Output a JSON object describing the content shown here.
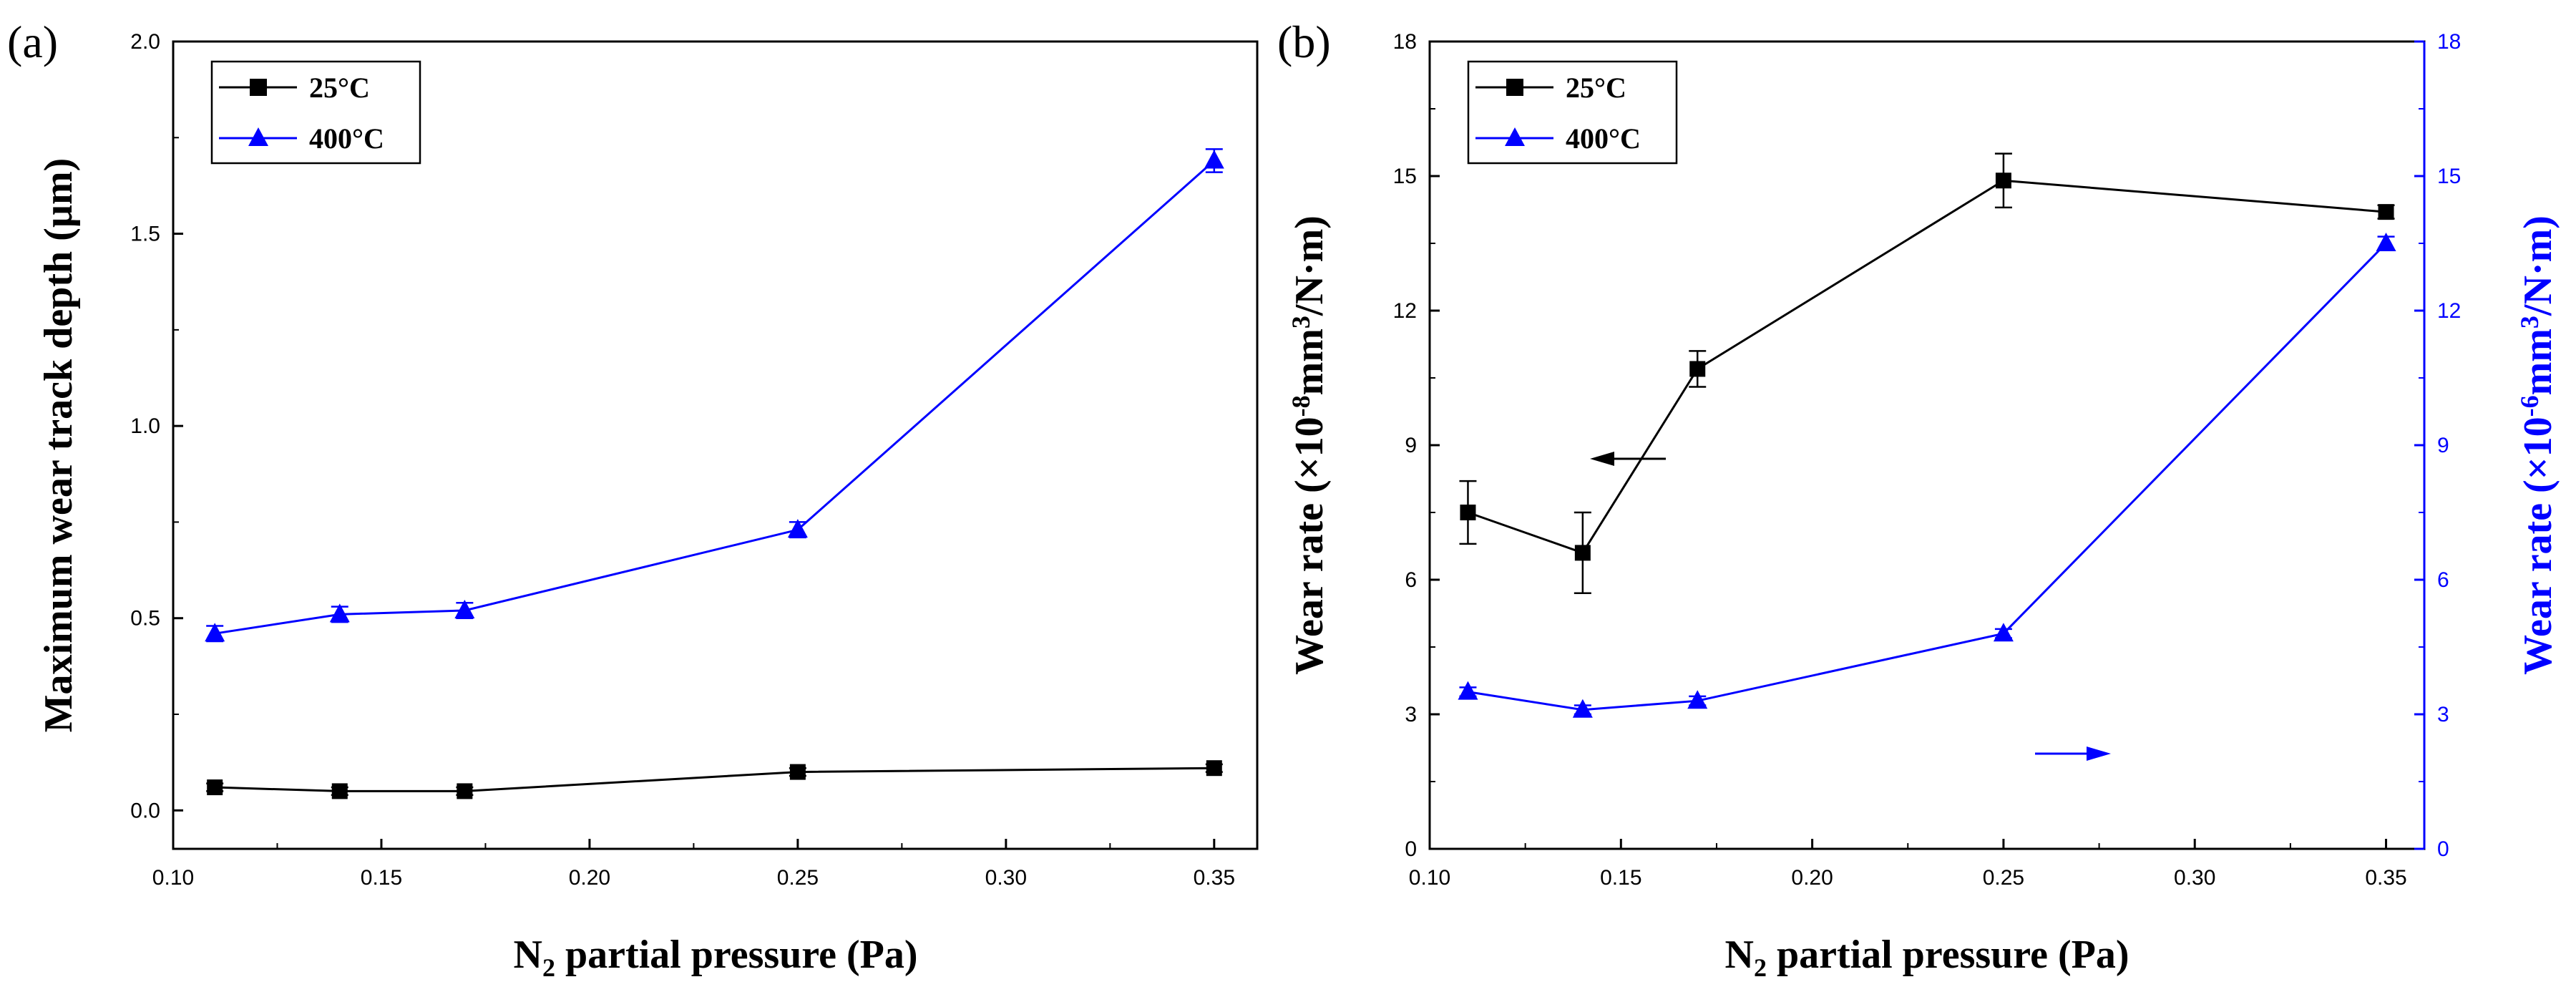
{
  "chart_data": [
    {
      "panel": "(a)",
      "type": "line",
      "xlabel": "N2 partial pressure (Pa)",
      "ylabel": "Maximum wear track depth (µm)",
      "xlim": [
        0.1,
        0.36
      ],
      "ylim": [
        -0.1,
        2.0
      ],
      "xticks": [
        "0.10",
        "0.15",
        "0.20",
        "0.25",
        "0.30",
        "0.35"
      ],
      "yticks": [
        "0.0",
        "0.5",
        "1.0",
        "1.5",
        "2.0"
      ],
      "legend": "top-left",
      "series": [
        {
          "name": "25°C",
          "color": "#000000",
          "marker": "square",
          "axis": "left",
          "x": [
            0.11,
            0.14,
            0.17,
            0.25,
            0.35
          ],
          "y": [
            0.06,
            0.05,
            0.05,
            0.1,
            0.11
          ],
          "err": [
            0.01,
            0.01,
            0.01,
            0.01,
            0.01
          ]
        },
        {
          "name": "400°C",
          "color": "#0000ff",
          "marker": "triangle",
          "axis": "left",
          "x": [
            0.11,
            0.14,
            0.17,
            0.25,
            0.35
          ],
          "y": [
            0.46,
            0.51,
            0.52,
            0.73,
            1.69
          ],
          "err": [
            0.02,
            0.02,
            0.02,
            0.02,
            0.03
          ]
        }
      ]
    },
    {
      "panel": "(b)",
      "type": "line",
      "xlabel": "N2 partial pressure (Pa)",
      "ylabel_left": "Wear rate (×10-8mm3/N·m)",
      "ylabel_right": "Wear rate (×10-6mm3/N·m)",
      "xlim": [
        0.1,
        0.36
      ],
      "ylim_left": [
        0,
        18
      ],
      "ylim_right": [
        0,
        18
      ],
      "xticks": [
        "0.10",
        "0.15",
        "0.20",
        "0.25",
        "0.30",
        "0.35"
      ],
      "yticks_left": [
        "0",
        "3",
        "6",
        "9",
        "12",
        "15",
        "18"
      ],
      "yticks_right": [
        "0",
        "3",
        "6",
        "9",
        "12",
        "15",
        "18"
      ],
      "legend": "top-left",
      "annotations": [
        "arrow pointing left at 25°C series",
        "arrow pointing right at 400°C series"
      ],
      "series": [
        {
          "name": "25°C",
          "color": "#000000",
          "marker": "square",
          "axis": "left",
          "x": [
            0.11,
            0.14,
            0.17,
            0.25,
            0.35
          ],
          "y": [
            7.5,
            6.6,
            10.7,
            14.9,
            14.2
          ],
          "err": [
            0.7,
            0.9,
            0.4,
            0.6,
            0.15
          ]
        },
        {
          "name": "400°C",
          "color": "#0000ff",
          "marker": "triangle",
          "axis": "right",
          "x": [
            0.11,
            0.14,
            0.17,
            0.25,
            0.35
          ],
          "y": [
            3.5,
            3.1,
            3.3,
            4.8,
            13.5
          ],
          "err": [
            0.1,
            0.1,
            0.1,
            0.1,
            0.15
          ]
        }
      ]
    }
  ],
  "text": {
    "a_label": "(a)",
    "b_label": "(b)",
    "a_ylabel": "Maximum wear track depth (µm)",
    "b_ylabel_left_pre": "Wear rate (×10",
    "b_ylabel_left_exp": "-8",
    "b_ylabel_left_mid": "mm",
    "b_ylabel_left_exp2": "3",
    "b_ylabel_left_post": "/N·m)",
    "b_ylabel_right_pre": "Wear rate (×10",
    "b_ylabel_right_exp": "-6",
    "b_ylabel_right_mid": "mm",
    "b_ylabel_right_exp2": "3",
    "b_ylabel_right_post": "/N·m)",
    "xlabel_pre": "N",
    "xlabel_sub": "2",
    "xlabel_post": " partial pressure (Pa)",
    "legend_25": "25°C",
    "legend_400": "400°C"
  }
}
